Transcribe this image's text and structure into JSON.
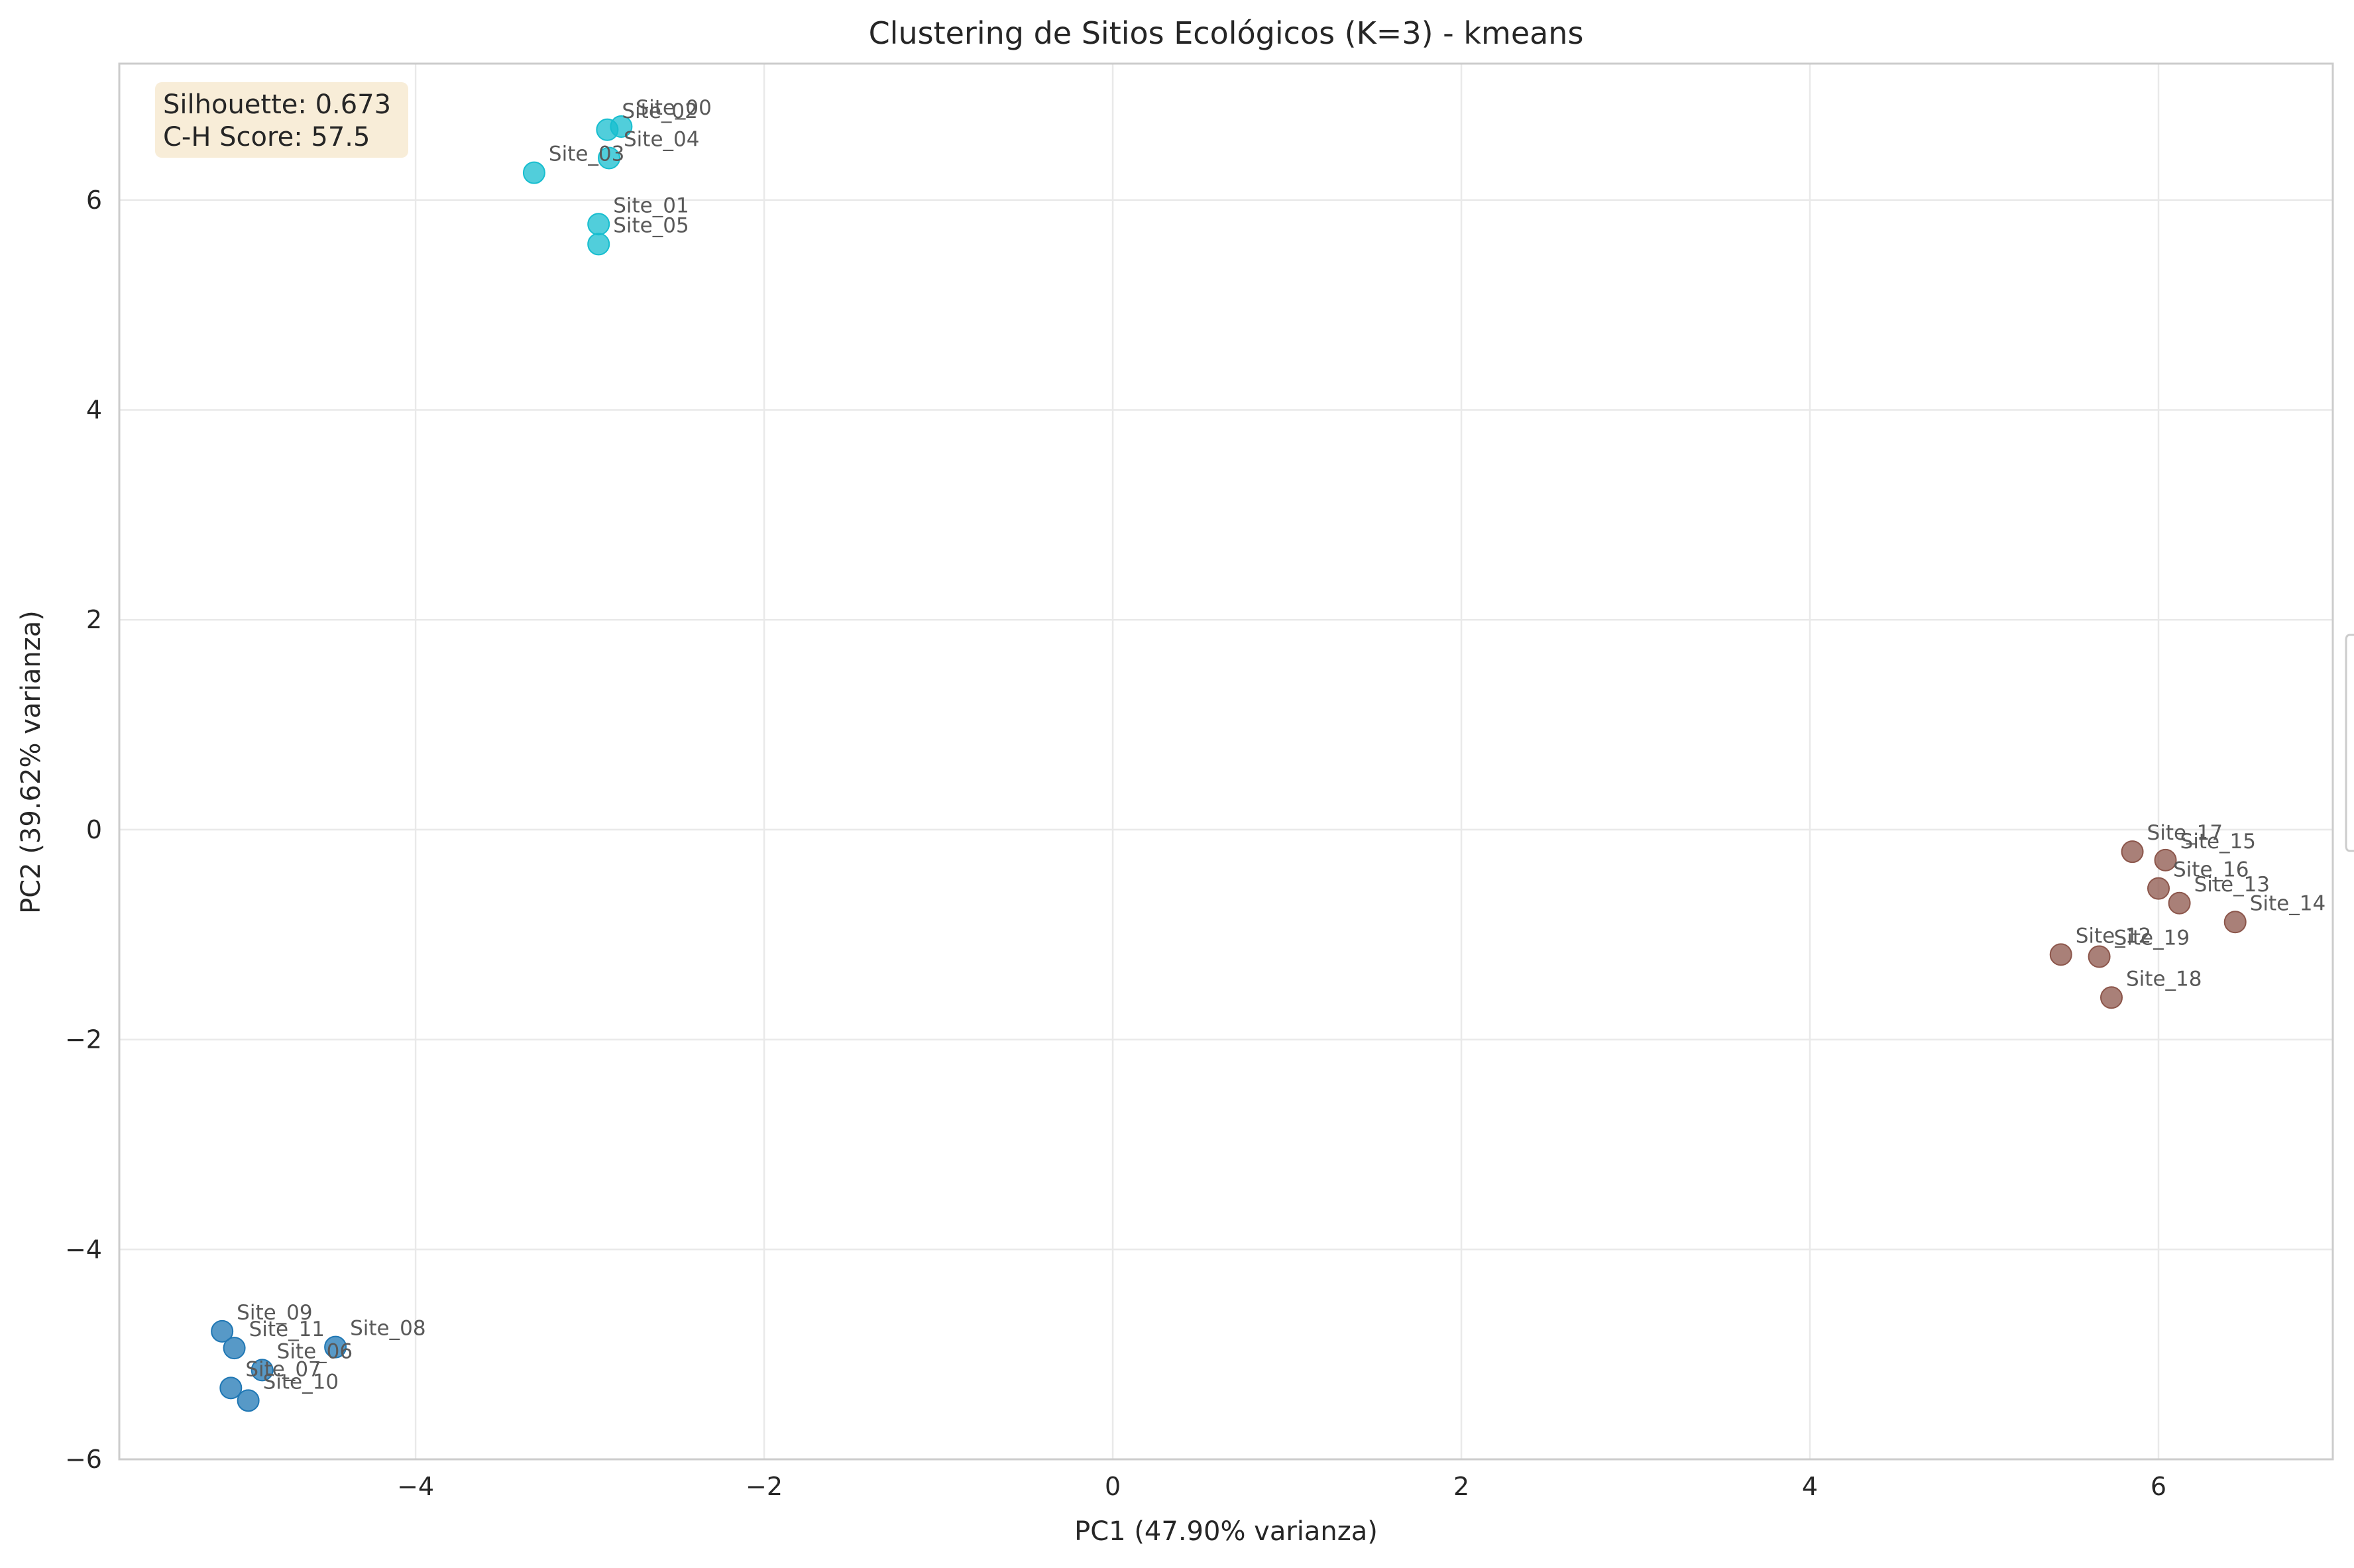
{
  "chart_data": {
    "type": "scatter",
    "title": "Clustering de Sitios Ecológicos (K=3) - kmeans",
    "xlabel": "PC1 (47.90% varianza)",
    "ylabel": "PC2 (39.62% varianza)",
    "xlim": [
      -5.7,
      7.0
    ],
    "ylim": [
      -6.0,
      7.3
    ],
    "x_ticks": [
      -4,
      -2,
      0,
      2,
      4,
      6
    ],
    "y_ticks": [
      -6,
      -4,
      -2,
      0,
      2,
      4,
      6
    ],
    "x_tick_labels": [
      "−4",
      "−2",
      "0",
      "2",
      "4",
      "6"
    ],
    "y_tick_labels": [
      "−6",
      "−4",
      "−2",
      "0",
      "2",
      "4",
      "6"
    ],
    "grid": true,
    "stats": {
      "silhouette": "Silhouette: 0.673",
      "ch_score": "C-H Score: 57.5"
    },
    "clusters": [
      {
        "color": "#17becf",
        "points": [
          {
            "label": "Site_00",
            "x": -2.82,
            "y": 6.7
          },
          {
            "label": "Site_01",
            "x": -2.95,
            "y": 5.77
          },
          {
            "label": "Site_02",
            "x": -2.9,
            "y": 6.67
          },
          {
            "label": "Site_03",
            "x": -3.32,
            "y": 6.26
          },
          {
            "label": "Site_04",
            "x": -2.89,
            "y": 6.4
          },
          {
            "label": "Site_05",
            "x": -2.95,
            "y": 5.58
          }
        ]
      },
      {
        "color": "#1f77b4",
        "points": [
          {
            "label": "Site_06",
            "x": -4.88,
            "y": -5.15
          },
          {
            "label": "Site_07",
            "x": -5.06,
            "y": -5.32
          },
          {
            "label": "Site_08",
            "x": -4.46,
            "y": -4.93
          },
          {
            "label": "Site_09",
            "x": -5.11,
            "y": -4.78
          },
          {
            "label": "Site_10",
            "x": -4.96,
            "y": -5.44
          },
          {
            "label": "Site_11",
            "x": -5.04,
            "y": -4.94
          }
        ]
      },
      {
        "color": "#8c564b",
        "points": [
          {
            "label": "Site_12",
            "x": 5.44,
            "y": -1.19
          },
          {
            "label": "Site_13",
            "x": 6.12,
            "y": -0.7
          },
          {
            "label": "Site_14",
            "x": 6.44,
            "y": -0.88
          },
          {
            "label": "Site_15",
            "x": 6.04,
            "y": -0.29
          },
          {
            "label": "Site_16",
            "x": 6.0,
            "y": -0.56
          },
          {
            "label": "Site_17",
            "x": 5.85,
            "y": -0.21
          },
          {
            "label": "Site_18",
            "x": 5.73,
            "y": -1.6
          },
          {
            "label": "Site_19",
            "x": 5.66,
            "y": -1.21
          }
        ]
      }
    ]
  }
}
